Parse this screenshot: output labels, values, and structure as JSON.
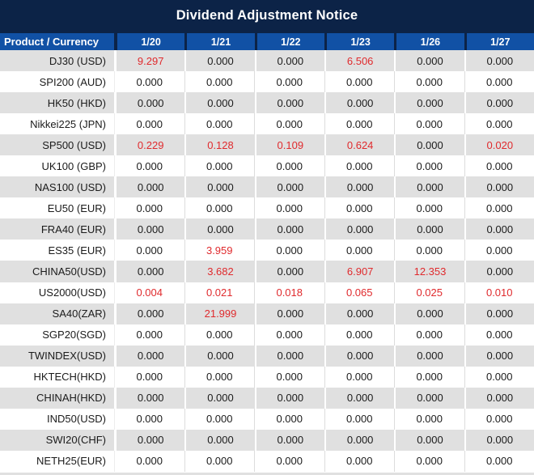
{
  "title": "Dividend Adjustment Notice",
  "colors": {
    "title_bar_navy": "#0c2347",
    "header_blue": "#1151a5",
    "row_gray": "#e0e0e0",
    "row_white": "#ffffff",
    "value_red": "#e02a2d",
    "text_black": "#1b1b1b",
    "header_text": "#ffffff"
  },
  "chart_data": {
    "type": "table",
    "title": "Dividend Adjustment Notice",
    "product_header": "Product / Currency",
    "date_headers": [
      "1/20",
      "1/21",
      "1/22",
      "1/23",
      "1/26",
      "1/27"
    ],
    "rows": [
      {
        "product": "DJ30 (USD)",
        "values": [
          "9.297",
          "0.000",
          "0.000",
          "6.506",
          "0.000",
          "0.000"
        ],
        "red": [
          true,
          false,
          false,
          true,
          false,
          false
        ]
      },
      {
        "product": "SPI200 (AUD)",
        "values": [
          "0.000",
          "0.000",
          "0.000",
          "0.000",
          "0.000",
          "0.000"
        ],
        "red": [
          false,
          false,
          false,
          false,
          false,
          false
        ]
      },
      {
        "product": "HK50 (HKD)",
        "values": [
          "0.000",
          "0.000",
          "0.000",
          "0.000",
          "0.000",
          "0.000"
        ],
        "red": [
          false,
          false,
          false,
          false,
          false,
          false
        ]
      },
      {
        "product": "Nikkei225 (JPN)",
        "values": [
          "0.000",
          "0.000",
          "0.000",
          "0.000",
          "0.000",
          "0.000"
        ],
        "red": [
          false,
          false,
          false,
          false,
          false,
          false
        ]
      },
      {
        "product": "SP500 (USD)",
        "values": [
          "0.229",
          "0.128",
          "0.109",
          "0.624",
          "0.000",
          "0.020"
        ],
        "red": [
          true,
          true,
          true,
          true,
          false,
          true
        ]
      },
      {
        "product": "UK100 (GBP)",
        "values": [
          "0.000",
          "0.000",
          "0.000",
          "0.000",
          "0.000",
          "0.000"
        ],
        "red": [
          false,
          false,
          false,
          false,
          false,
          false
        ]
      },
      {
        "product": "NAS100 (USD)",
        "values": [
          "0.000",
          "0.000",
          "0.000",
          "0.000",
          "0.000",
          "0.000"
        ],
        "red": [
          false,
          false,
          false,
          false,
          false,
          false
        ]
      },
      {
        "product": "EU50 (EUR)",
        "values": [
          "0.000",
          "0.000",
          "0.000",
          "0.000",
          "0.000",
          "0.000"
        ],
        "red": [
          false,
          false,
          false,
          false,
          false,
          false
        ]
      },
      {
        "product": "FRA40 (EUR)",
        "values": [
          "0.000",
          "0.000",
          "0.000",
          "0.000",
          "0.000",
          "0.000"
        ],
        "red": [
          false,
          false,
          false,
          false,
          false,
          false
        ]
      },
      {
        "product": "ES35 (EUR)",
        "values": [
          "0.000",
          "3.959",
          "0.000",
          "0.000",
          "0.000",
          "0.000"
        ],
        "red": [
          false,
          true,
          false,
          false,
          false,
          false
        ]
      },
      {
        "product": "CHINA50(USD)",
        "values": [
          "0.000",
          "3.682",
          "0.000",
          "6.907",
          "12.353",
          "0.000"
        ],
        "red": [
          false,
          true,
          false,
          true,
          true,
          false
        ]
      },
      {
        "product": "US2000(USD)",
        "values": [
          "0.004",
          "0.021",
          "0.018",
          "0.065",
          "0.025",
          "0.010"
        ],
        "red": [
          true,
          true,
          true,
          true,
          true,
          true
        ]
      },
      {
        "product": "SA40(ZAR)",
        "values": [
          "0.000",
          "21.999",
          "0.000",
          "0.000",
          "0.000",
          "0.000"
        ],
        "red": [
          false,
          true,
          false,
          false,
          false,
          false
        ]
      },
      {
        "product": "SGP20(SGD)",
        "values": [
          "0.000",
          "0.000",
          "0.000",
          "0.000",
          "0.000",
          "0.000"
        ],
        "red": [
          false,
          false,
          false,
          false,
          false,
          false
        ]
      },
      {
        "product": "TWINDEX(USD)",
        "values": [
          "0.000",
          "0.000",
          "0.000",
          "0.000",
          "0.000",
          "0.000"
        ],
        "red": [
          false,
          false,
          false,
          false,
          false,
          false
        ]
      },
      {
        "product": "HKTECH(HKD)",
        "values": [
          "0.000",
          "0.000",
          "0.000",
          "0.000",
          "0.000",
          "0.000"
        ],
        "red": [
          false,
          false,
          false,
          false,
          false,
          false
        ]
      },
      {
        "product": "CHINAH(HKD)",
        "values": [
          "0.000",
          "0.000",
          "0.000",
          "0.000",
          "0.000",
          "0.000"
        ],
        "red": [
          false,
          false,
          false,
          false,
          false,
          false
        ]
      },
      {
        "product": "IND50(USD)",
        "values": [
          "0.000",
          "0.000",
          "0.000",
          "0.000",
          "0.000",
          "0.000"
        ],
        "red": [
          false,
          false,
          false,
          false,
          false,
          false
        ]
      },
      {
        "product": "SWI20(CHF)",
        "values": [
          "0.000",
          "0.000",
          "0.000",
          "0.000",
          "0.000",
          "0.000"
        ],
        "red": [
          false,
          false,
          false,
          false,
          false,
          false
        ]
      },
      {
        "product": "NETH25(EUR)",
        "values": [
          "0.000",
          "0.000",
          "0.000",
          "0.000",
          "0.000",
          "0.000"
        ],
        "red": [
          false,
          false,
          false,
          false,
          false,
          false
        ]
      }
    ]
  }
}
